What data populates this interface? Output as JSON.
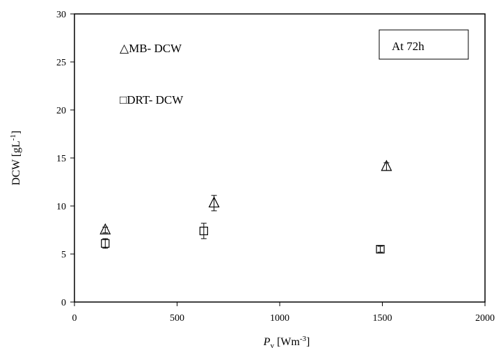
{
  "chart_data": {
    "type": "scatter",
    "title": "",
    "ylabel": {
      "main": "DCW [gL",
      "sup": "-1",
      "end": "]"
    },
    "xlabel": {
      "var": "P",
      "sub": "v",
      "main": " [Wm",
      "sup": "-3",
      "end": "]"
    },
    "xlim": [
      0,
      2000
    ],
    "ylim": [
      0,
      30
    ],
    "xticks": [
      0,
      500,
      1000,
      1500,
      2000
    ],
    "yticks": [
      0,
      5,
      10,
      15,
      20,
      25,
      30
    ],
    "grid": false,
    "annotation": "At 72h",
    "legend_placement": "top-left",
    "series": [
      {
        "name": "MB- DCW",
        "marker": "triangle",
        "legend_symbol": "△",
        "points": [
          {
            "x": 150,
            "y": 7.5,
            "err": 0.3
          },
          {
            "x": 680,
            "y": 10.3,
            "err": 0.8
          },
          {
            "x": 1520,
            "y": 14.1,
            "err": 0.4
          }
        ]
      },
      {
        "name": "DRT- DCW",
        "marker": "square",
        "legend_symbol": "□",
        "points": [
          {
            "x": 150,
            "y": 6.1,
            "err": 0.5
          },
          {
            "x": 630,
            "y": 7.4,
            "err": 0.8
          },
          {
            "x": 1490,
            "y": 5.5,
            "err": 0.3
          }
        ]
      }
    ]
  }
}
